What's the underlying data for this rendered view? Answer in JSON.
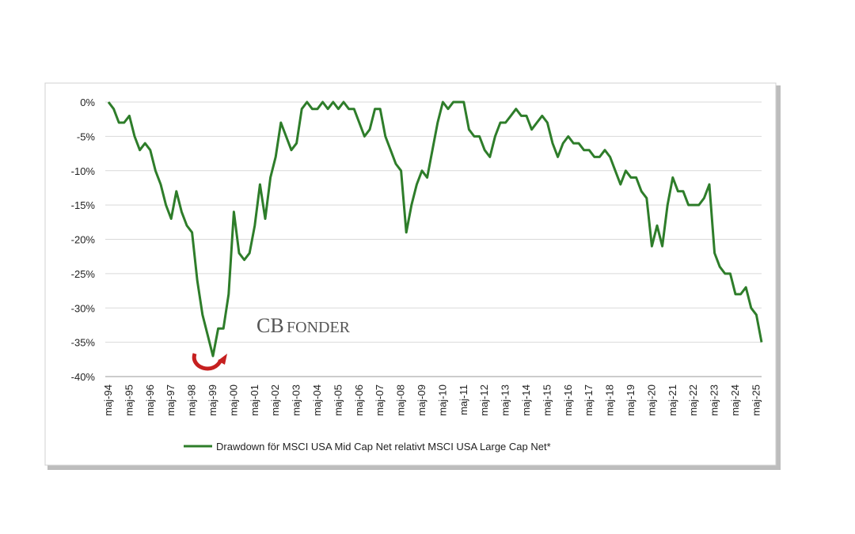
{
  "chart_data": {
    "type": "line",
    "categories": [
      "maj-94",
      null,
      null,
      null,
      "maj-95",
      null,
      null,
      null,
      "maj-96",
      null,
      null,
      null,
      "maj-97",
      null,
      null,
      null,
      "maj-98",
      null,
      null,
      null,
      "maj-99",
      null,
      null,
      null,
      "maj-00",
      null,
      null,
      null,
      "maj-01",
      null,
      null,
      null,
      "maj-02",
      null,
      null,
      null,
      "maj-03",
      null,
      null,
      null,
      "maj-04",
      null,
      null,
      null,
      "maj-05",
      null,
      null,
      null,
      "maj-06",
      null,
      null,
      null,
      "maj-07",
      null,
      null,
      null,
      "maj-08",
      null,
      null,
      null,
      "maj-09",
      null,
      null,
      null,
      "maj-10",
      null,
      null,
      null,
      "maj-11",
      null,
      null,
      null,
      "maj-12",
      null,
      null,
      null,
      "maj-13",
      null,
      null,
      null,
      "maj-14",
      null,
      null,
      null,
      "maj-15",
      null,
      null,
      null,
      "maj-16",
      null,
      null,
      null,
      "maj-17",
      null,
      null,
      null,
      "maj-18",
      null,
      null,
      null,
      "maj-19",
      null,
      null,
      null,
      "maj-20",
      null,
      null,
      null,
      "maj-21",
      null,
      null,
      null,
      "maj-22",
      null,
      null,
      null,
      "maj-23",
      null,
      null,
      null,
      "maj-24",
      null,
      null,
      null,
      "maj-25",
      null
    ],
    "series": [
      {
        "name": "Drawdown för MSCI USA Mid Cap Net relativt MSCI USA Large Cap Net*",
        "color": "#2e7d2a",
        "values": [
          0,
          -1,
          -3,
          -3,
          -2,
          -5,
          -7,
          -6,
          -7,
          -10,
          -12,
          -15,
          -17,
          -13,
          -16,
          -18,
          -19,
          -26,
          -31,
          -34,
          -37,
          -33,
          -33,
          -28,
          -16,
          -22,
          -23,
          -22,
          -18,
          -12,
          -17,
          -11,
          -8,
          -3,
          -5,
          -7,
          -6,
          -1,
          0,
          -1,
          -1,
          0,
          -1,
          0,
          -1,
          0,
          -1,
          -1,
          -3,
          -5,
          -4,
          -1,
          -1,
          -5,
          -7,
          -9,
          -10,
          -19,
          -15,
          -12,
          -10,
          -11,
          -7,
          -3,
          0,
          -1,
          0,
          0,
          0,
          -4,
          -5,
          -5,
          -7,
          -8,
          -5,
          -3,
          -3,
          -2,
          -1,
          -2,
          -2,
          -4,
          -3,
          -2,
          -3,
          -6,
          -8,
          -6,
          -5,
          -6,
          -6,
          -7,
          -7,
          -8,
          -8,
          -7,
          -8,
          -10,
          -12,
          -10,
          -11,
          -11,
          -13,
          -14,
          -21,
          -18,
          -21,
          -15,
          -11,
          -13,
          -13,
          -15,
          -15,
          -15,
          -14,
          -12,
          -22,
          -24,
          -25,
          -25,
          -28,
          -28,
          -27,
          -30,
          -31,
          -35
        ]
      }
    ],
    "ylim": [
      -40,
      0
    ],
    "yticks": [
      {
        "value": 0,
        "label": "0%"
      },
      {
        "value": -5,
        "label": "-5%"
      },
      {
        "value": -10,
        "label": "-10%"
      },
      {
        "value": -15,
        "label": "-15%"
      },
      {
        "value": -20,
        "label": "-20%"
      },
      {
        "value": -25,
        "label": "-25%"
      },
      {
        "value": -30,
        "label": "-30%"
      },
      {
        "value": -35,
        "label": "-35%"
      },
      {
        "value": -40,
        "label": "-40%"
      }
    ],
    "grid": true,
    "annotations": [
      "CB",
      "FONDER"
    ]
  }
}
